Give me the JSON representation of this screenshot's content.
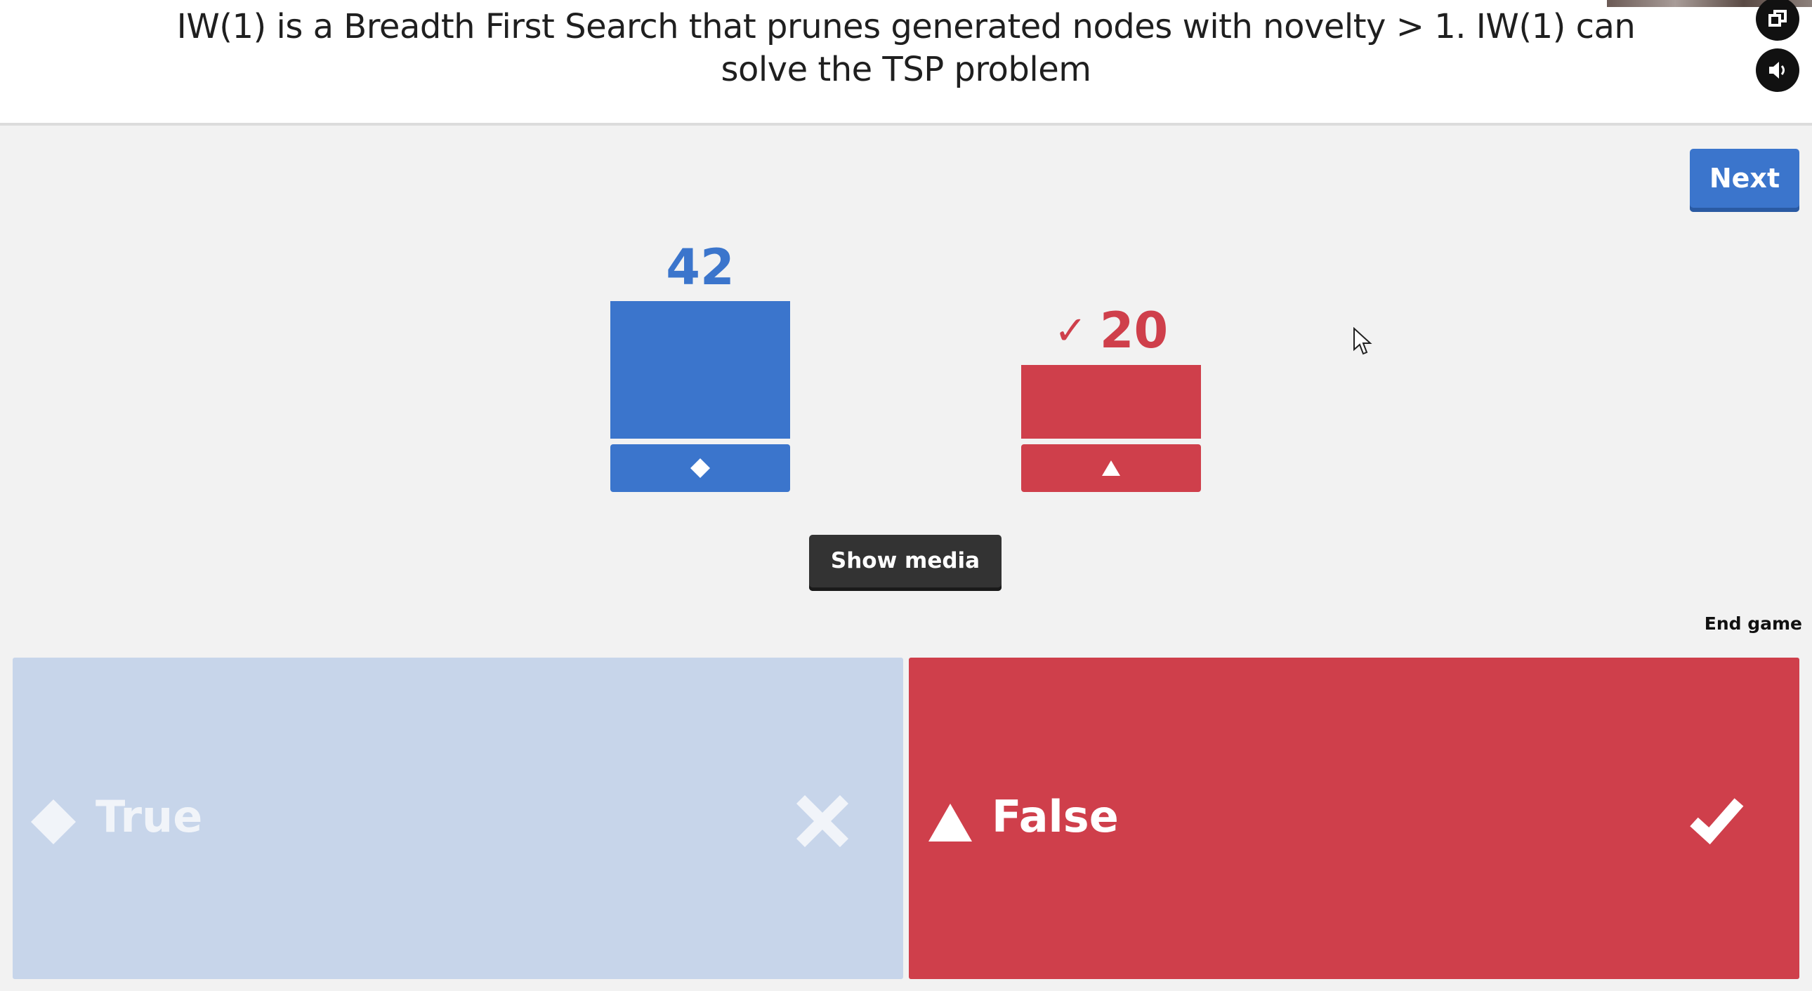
{
  "question": {
    "text": "IW(1) is a Breadth First Search that prunes generated nodes with novelty > 1.  IW(1) can solve the TSP problem"
  },
  "controls": {
    "next_label": "Next",
    "show_media_label": "Show media",
    "end_game_label": "End game",
    "fullscreen_icon": "fullscreen-icon",
    "sound_icon": "speaker-icon"
  },
  "results": {
    "true_count": "42",
    "false_count": "20",
    "false_correct_mark": "✓"
  },
  "answers": [
    {
      "label": "True",
      "shape": "diamond",
      "correct": false,
      "color": "#c7d5ea"
    },
    {
      "label": "False",
      "shape": "triangle",
      "correct": true,
      "color": "#cf3f4b"
    }
  ],
  "colors": {
    "blue": "#3b75cc",
    "red": "#cf3f4b",
    "dark_button": "#333333",
    "background": "#f2f2f2"
  }
}
